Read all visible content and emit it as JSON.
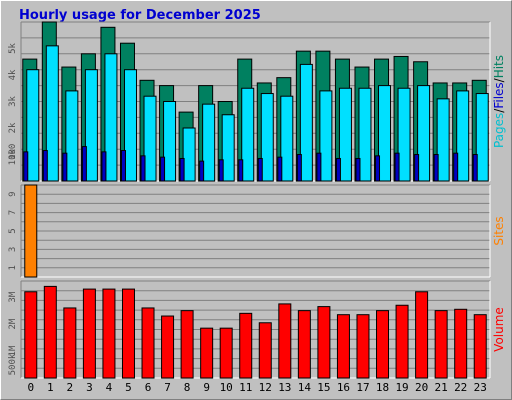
{
  "chart_data": {
    "type": "bar",
    "title": "Hourly usage for December 2025",
    "categories": [
      "0",
      "1",
      "2",
      "3",
      "4",
      "5",
      "6",
      "7",
      "8",
      "9",
      "10",
      "11",
      "12",
      "13",
      "14",
      "15",
      "16",
      "17",
      "18",
      "19",
      "20",
      "21",
      "22",
      "23"
    ],
    "panels": [
      {
        "name": "traffic",
        "ylim": [
          0,
          6000
        ],
        "yticks": [
          "1000",
          "1k",
          "2k",
          "3k",
          "4k",
          "5k"
        ],
        "ytick_values": [
          1000,
          1000,
          2000,
          3000,
          4000,
          5000
        ],
        "axis_label": [
          "Pages",
          "/",
          "Files",
          "/",
          "Hits"
        ],
        "axis_label_colors": [
          "#00c0d0",
          "#000000",
          "#0000d0",
          "#000000",
          "#008060"
        ],
        "series": [
          {
            "name": "Hits",
            "color": "#008060",
            "values": [
              4600,
              6000,
              4300,
              4800,
              5800,
              5200,
              3800,
              3600,
              2600,
              3600,
              3000,
              4600,
              3700,
              3900,
              4900,
              4900,
              4600,
              4300,
              4600,
              4700,
              4500,
              3700,
              3700,
              3800
            ]
          },
          {
            "name": "Files",
            "color": "#00e0ff",
            "values": [
              4200,
              5100,
              3400,
              4200,
              4800,
              4200,
              3200,
              3000,
              2000,
              2900,
              2500,
              3500,
              3300,
              3200,
              4400,
              3400,
              3500,
              3500,
              3600,
              3500,
              3600,
              3100,
              3400,
              3300
            ]
          },
          {
            "name": "Pages",
            "color": "#0000c0",
            "values": [
              1100,
              1150,
              1050,
              1300,
              1100,
              1150,
              950,
              900,
              850,
              750,
              800,
              800,
              850,
              900,
              1000,
              1050,
              850,
              850,
              950,
              1050,
              1000,
              1000,
              1050,
              1000
            ]
          }
        ]
      },
      {
        "name": "sites",
        "ylim": [
          0,
          10
        ],
        "yticks": [
          "1",
          "3",
          "5",
          "7",
          "9"
        ],
        "ytick_values": [
          1,
          3,
          5,
          7,
          9
        ],
        "axis_label": [
          "Sites"
        ],
        "axis_label_colors": [
          "#ff8000"
        ],
        "series": [
          {
            "name": "Sites",
            "color": "#ff8000",
            "values": [
              10,
              0,
              0,
              0,
              0,
              0,
              0,
              0,
              0,
              0,
              0,
              0,
              0,
              0,
              0,
              0,
              0,
              0,
              0,
              0,
              0,
              0,
              0,
              0
            ]
          }
        ]
      },
      {
        "name": "volume",
        "ylim": [
          0,
          3600000
        ],
        "yticks": [
          "500k",
          "1M",
          "2M",
          "3M"
        ],
        "ytick_values": [
          500000,
          1000000,
          2000000,
          3000000
        ],
        "axis_label": [
          "Volume"
        ],
        "axis_label_colors": [
          "#ff0000"
        ],
        "series": [
          {
            "name": "Volume",
            "color": "#ff0000",
            "values": [
              3200000,
              3400000,
              2600000,
              3300000,
              3300000,
              3300000,
              2600000,
              2300000,
              2500000,
              1850000,
              1850000,
              2400000,
              2050000,
              2750000,
              2500000,
              2650000,
              2350000,
              2350000,
              2500000,
              2700000,
              3200000,
              2500000,
              2550000,
              2350000
            ]
          }
        ]
      }
    ],
    "grid": true,
    "legend": "right-side vertical labels"
  }
}
